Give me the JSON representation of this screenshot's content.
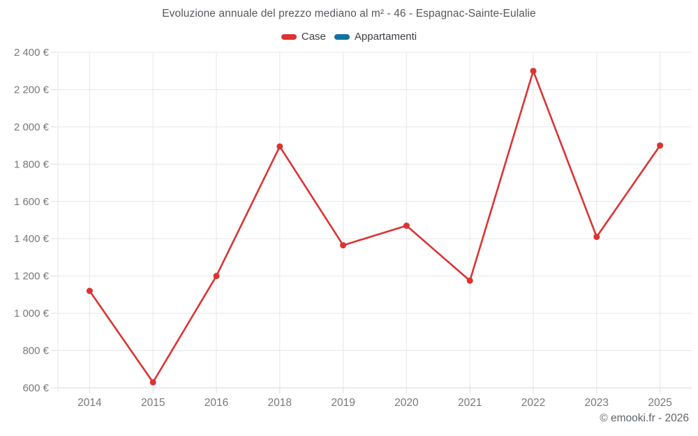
{
  "header": {
    "title": "Evoluzione annuale del prezzo mediano al m² - 46 - Espagnac-Sainte-Eulalie"
  },
  "footer": {
    "text": "© emooki.fr - 2026"
  },
  "chart_data": {
    "type": "line",
    "title": "Evoluzione annuale del prezzo mediano al m² - 46 - Espagnac-Sainte-Eulalie",
    "categories": [
      "2014",
      "2015",
      "2016",
      "2018",
      "2019",
      "2020",
      "2021",
      "2022",
      "2023",
      "2025"
    ],
    "series": [
      {
        "name": "Case",
        "color": "#db3333",
        "values": [
          1120,
          630,
          1200,
          1895,
          1365,
          1470,
          1175,
          2300,
          1410,
          1900
        ]
      },
      {
        "name": "Appartamenti",
        "color": "#1272a5",
        "values": []
      }
    ],
    "ylim": [
      600,
      2400
    ],
    "ytick_step": 200,
    "ytick_labels": [
      "600 €",
      "800 €",
      "1 000 €",
      "1 200 €",
      "1 400 €",
      "1 600 €",
      "1 800 €",
      "2 000 €",
      "2 200 €",
      "2 400 €"
    ],
    "y_suffix": " €",
    "xlabel": "",
    "ylabel": "",
    "grid": true,
    "legend_position": "top"
  },
  "styles": {
    "background": "#ffffff",
    "title_color": "#54585d",
    "legend_text_color": "#3a3e43",
    "axis_label_color": "#75787c",
    "gridline_color": "#e7e7e7",
    "axis_line_color": "#d8d8d8",
    "tick_color": "#dcdcdc",
    "footer_color": "#5f6368",
    "case_red": "#db3333",
    "appartamenti_blue": "#1272a5"
  }
}
